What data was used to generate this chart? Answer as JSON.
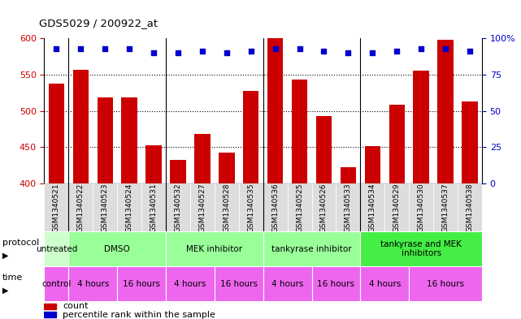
{
  "title": "GDS5029 / 200922_at",
  "samples": [
    "GSM1340521",
    "GSM1340522",
    "GSM1340523",
    "GSM1340524",
    "GSM1340531",
    "GSM1340532",
    "GSM1340527",
    "GSM1340528",
    "GSM1340535",
    "GSM1340536",
    "GSM1340525",
    "GSM1340526",
    "GSM1340533",
    "GSM1340534",
    "GSM1340529",
    "GSM1340530",
    "GSM1340537",
    "GSM1340538"
  ],
  "counts": [
    537,
    557,
    519,
    519,
    452,
    432,
    468,
    443,
    528,
    600,
    543,
    493,
    422,
    451,
    509,
    555,
    598,
    513
  ],
  "percentiles": [
    93,
    93,
    93,
    93,
    90,
    90,
    91,
    90,
    91,
    93,
    93,
    91,
    90,
    90,
    91,
    93,
    93,
    91
  ],
  "ylim_left": [
    400,
    600
  ],
  "ylim_right": [
    0,
    100
  ],
  "yticks_left": [
    400,
    450,
    500,
    550,
    600
  ],
  "yticks_right": [
    0,
    25,
    50,
    75,
    100
  ],
  "bar_color": "#cc0000",
  "dot_color": "#0000cc",
  "protocol_spans_samples": [
    [
      0,
      1,
      "untreated",
      "#ccffcc"
    ],
    [
      1,
      5,
      "DMSO",
      "#99ff99"
    ],
    [
      5,
      9,
      "MEK inhibitor",
      "#99ff99"
    ],
    [
      9,
      13,
      "tankyrase inhibitor",
      "#99ff99"
    ],
    [
      13,
      18,
      "tankyrase and MEK\ninhibitors",
      "#44ee44"
    ]
  ],
  "time_spans_samples": [
    [
      0,
      1,
      "control"
    ],
    [
      1,
      3,
      "4 hours"
    ],
    [
      3,
      5,
      "16 hours"
    ],
    [
      5,
      7,
      "4 hours"
    ],
    [
      7,
      9,
      "16 hours"
    ],
    [
      9,
      11,
      "4 hours"
    ],
    [
      11,
      13,
      "16 hours"
    ],
    [
      13,
      15,
      "4 hours"
    ],
    [
      15,
      18,
      "16 hours"
    ]
  ],
  "time_color": "#ee66ee",
  "sample_bg_color": "#dddddd",
  "fig_bg": "#ffffff"
}
